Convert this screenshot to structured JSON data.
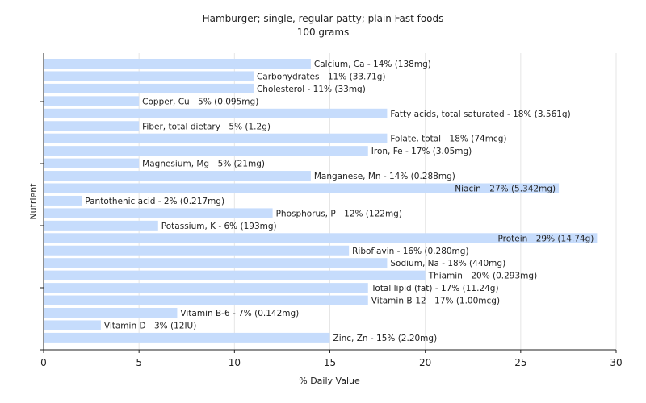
{
  "chart_data": {
    "type": "bar",
    "orientation": "horizontal",
    "title": "Hamburger; single, regular patty; plain Fast foods",
    "subtitle": "100 grams",
    "xlabel": "% Daily Value",
    "ylabel": "Nutrient",
    "xlim": [
      0,
      30
    ],
    "xticks": [
      0,
      5,
      10,
      15,
      20,
      25,
      30
    ],
    "grid": true,
    "bar_color": "#c6dcfc",
    "categories": [
      "Calcium, Ca",
      "Carbohydrates",
      "Cholesterol",
      "Copper, Cu",
      "Fatty acids, total saturated",
      "Fiber, total dietary",
      "Folate, total",
      "Iron, Fe",
      "Magnesium, Mg",
      "Manganese, Mn",
      "Niacin",
      "Pantothenic acid",
      "Phosphorus, P",
      "Potassium, K",
      "Protein",
      "Riboflavin",
      "Sodium, Na",
      "Thiamin",
      "Total lipid (fat)",
      "Vitamin B-12",
      "Vitamin B-6",
      "Vitamin D",
      "Zinc, Zn"
    ],
    "values": [
      14,
      11,
      11,
      5,
      18,
      5,
      18,
      17,
      5,
      14,
      27,
      2,
      12,
      6,
      29,
      16,
      18,
      20,
      17,
      17,
      7,
      3,
      15
    ],
    "labels": [
      "Calcium, Ca - 14% (138mg)",
      "Carbohydrates - 11% (33.71g)",
      "Cholesterol - 11% (33mg)",
      "Copper, Cu - 5% (0.095mg)",
      "Fatty acids, total saturated - 18% (3.561g)",
      "Fiber, total dietary - 5% (1.2g)",
      "Folate, total - 18% (74mcg)",
      "Iron, Fe - 17% (3.05mg)",
      "Magnesium, Mg - 5% (21mg)",
      "Manganese, Mn - 14% (0.288mg)",
      "Niacin - 27% (5.342mg)",
      "Pantothenic acid - 2% (0.217mg)",
      "Phosphorus, P - 12% (122mg)",
      "Potassium, K - 6% (193mg)",
      "Protein - 29% (14.74g)",
      "Riboflavin - 16% (0.280mg)",
      "Sodium, Na - 18% (440mg)",
      "Thiamin - 20% (0.293mg)",
      "Total lipid (fat) - 17% (11.24g)",
      "Vitamin B-12 - 17% (1.00mcg)",
      "Vitamin B-6 - 7% (0.142mg)",
      "Vitamin D - 3% (12IU)",
      "Zinc, Zn - 15% (2.20mg)"
    ]
  }
}
